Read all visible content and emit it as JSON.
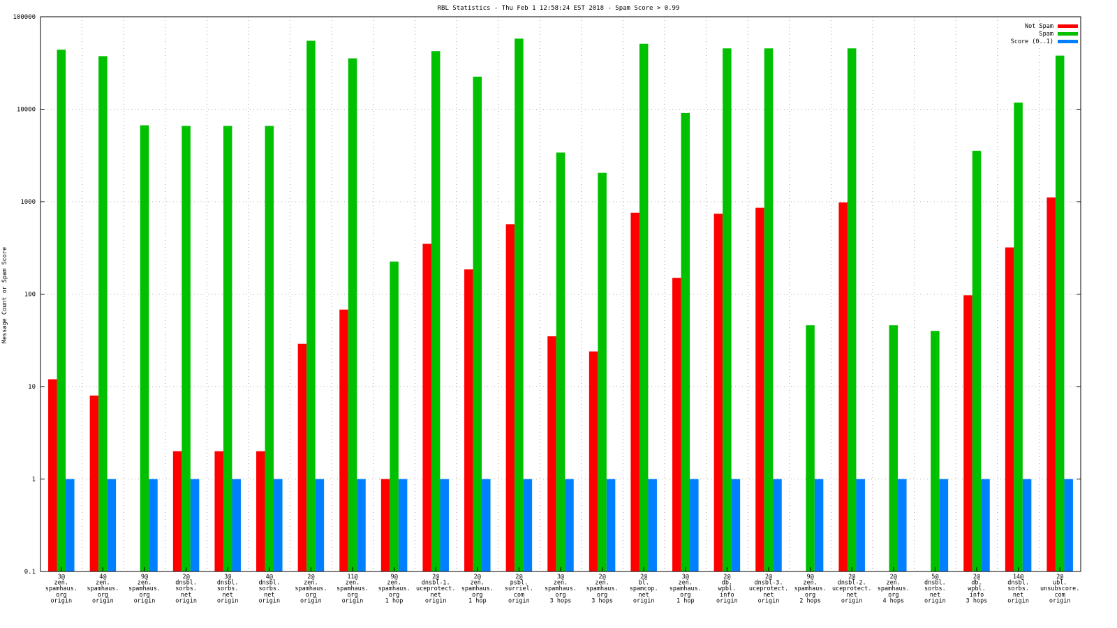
{
  "chart_data": {
    "type": "bar",
    "title": "RBL Statistics - Thu Feb  1 12:58:24 EST 2018 - Spam Score > 0.99",
    "xlabel": "",
    "ylabel": "Message Count or Spam Score",
    "yscale": "log",
    "ylim": [
      0.1,
      100000
    ],
    "yticks": [
      "0.1",
      "1",
      "10",
      "100",
      "1000",
      "10000",
      "100000"
    ],
    "grid": true,
    "legend_position": "top-right",
    "categories": [
      [
        "3@",
        "zen.",
        "spamhaus.",
        "org",
        "origin"
      ],
      [
        "4@",
        "zen.",
        "spamhaus.",
        "org",
        "origin"
      ],
      [
        "9@",
        "zen.",
        "spamhaus.",
        "org",
        "origin"
      ],
      [
        "2@",
        "dnsbl.",
        "sorbs.",
        "net",
        "origin"
      ],
      [
        "3@",
        "dnsbl.",
        "sorbs.",
        "net",
        "origin"
      ],
      [
        "4@",
        "dnsbl.",
        "sorbs.",
        "net",
        "origin"
      ],
      [
        "2@",
        "zen.",
        "spamhaus.",
        "org",
        "origin"
      ],
      [
        "11@",
        "zen.",
        "spamhaus.",
        "org",
        "origin"
      ],
      [
        "9@",
        "zen.",
        "spamhaus.",
        "org",
        "1 hop"
      ],
      [
        "2@",
        "dnsbl-1.",
        "uceprotect.",
        "net",
        "origin"
      ],
      [
        "2@",
        "zen.",
        "spamhaus.",
        "org",
        "1 hop"
      ],
      [
        "2@",
        "psbl.",
        "surriel.",
        "com",
        "origin"
      ],
      [
        "3@",
        "zen.",
        "spamhaus.",
        "org",
        "3 hops"
      ],
      [
        "2@",
        "zen.",
        "spamhaus.",
        "org",
        "3 hops"
      ],
      [
        "2@",
        "bl.",
        "spamcop.",
        "net",
        "origin"
      ],
      [
        "3@",
        "zen.",
        "spamhaus.",
        "org",
        "1 hop"
      ],
      [
        "2@",
        "db.",
        "wpbl.",
        "info",
        "origin"
      ],
      [
        "2@",
        "dnsbl-3.",
        "uceprotect.",
        "net",
        "origin"
      ],
      [
        "9@",
        "zen.",
        "spamhaus.",
        "org",
        "2 hops"
      ],
      [
        "2@",
        "dnsbl-2.",
        "uceprotect.",
        "net",
        "origin"
      ],
      [
        "2@",
        "zen.",
        "spamhaus.",
        "org",
        "4 hops"
      ],
      [
        "5@",
        "dnsbl.",
        "sorbs.",
        "net",
        "origin"
      ],
      [
        "2@",
        "db.",
        "wpbl.",
        "info",
        "3 hops"
      ],
      [
        "14@",
        "dnsbl.",
        "sorbs.",
        "net",
        "origin"
      ],
      [
        "2@",
        "ubl.",
        "unsubscore.",
        "com",
        "origin"
      ]
    ],
    "series": [
      {
        "name": "Not Spam",
        "color": "#ff0000",
        "values": [
          12,
          8,
          null,
          2,
          2,
          2,
          29,
          68,
          1,
          350,
          185,
          570,
          35,
          24,
          760,
          150,
          740,
          860,
          null,
          980,
          null,
          null,
          97,
          320,
          1110
        ]
      },
      {
        "name": "Spam",
        "color": "#00c000",
        "values": [
          44000,
          37500,
          6700,
          6600,
          6600,
          6600,
          55000,
          35500,
          225,
          42500,
          22500,
          58000,
          3400,
          2050,
          51000,
          9100,
          45500,
          45500,
          46,
          45500,
          46,
          40,
          3550,
          11800,
          38000
        ]
      },
      {
        "name": "Score (0..1)",
        "color": "#0080ff",
        "values": [
          1,
          1,
          1,
          1,
          1,
          1,
          1,
          1,
          1,
          1,
          1,
          1,
          1,
          1,
          1,
          1,
          1,
          1,
          1,
          1,
          1,
          1,
          1,
          1,
          1
        ]
      }
    ]
  }
}
